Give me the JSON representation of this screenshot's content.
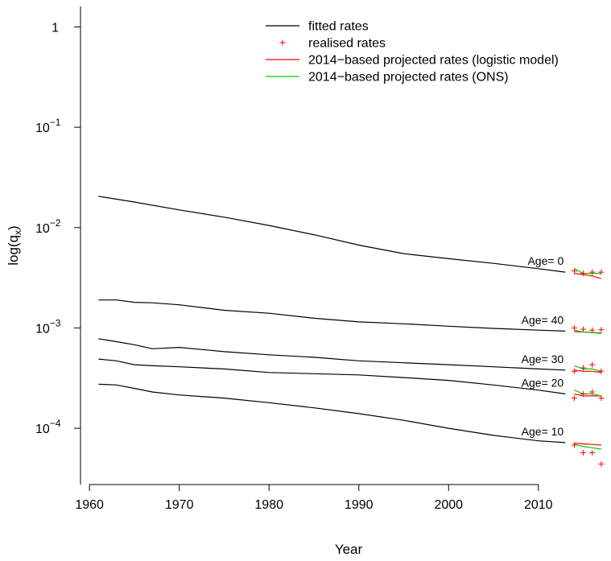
{
  "chart_data": {
    "type": "line",
    "xlabel": "Year",
    "ylabel": "log(q",
    "ylabel_sub": "x",
    "ylabel_close": ")",
    "yscale": "log",
    "xlim": [
      1959,
      2018
    ],
    "ylim": [
      2.75e-05,
      1.6
    ],
    "xticks": [
      1960,
      1970,
      1980,
      1990,
      2000,
      2010
    ],
    "yticks": [
      {
        "value": 1,
        "base": "1",
        "exp": ""
      },
      {
        "value": 0.1,
        "base": "10",
        "exp": "−1"
      },
      {
        "value": 0.01,
        "base": "10",
        "exp": "−2"
      },
      {
        "value": 0.001,
        "base": "10",
        "exp": "−3"
      },
      {
        "value": 0.0001,
        "base": "10",
        "exp": "−4"
      }
    ],
    "legend": {
      "position": "top-right",
      "entries": [
        {
          "label": "fitted rates",
          "kind": "line",
          "color": "#000000"
        },
        {
          "label": "realised rates",
          "kind": "plus",
          "color": "#ff0000"
        },
        {
          "label": "2014−based projected rates (logistic model)",
          "kind": "line",
          "color": "#ff0000"
        },
        {
          "label": "2014−based projected rates (ONS)",
          "kind": "line",
          "color": "#00cc00"
        }
      ]
    },
    "colors": {
      "fitted": "#000000",
      "realised": "#ff0000",
      "logistic": "#ff0000",
      "ons": "#00cc00"
    },
    "series": [
      {
        "age_label": "Age= 0",
        "fitted": {
          "x": [
            1961,
            1965,
            1970,
            1975,
            1980,
            1985,
            1990,
            1995,
            2000,
            2005,
            2010,
            2013
          ],
          "y": [
            0.0205,
            0.018,
            0.015,
            0.0127,
            0.0105,
            0.0085,
            0.0067,
            0.0055,
            0.0049,
            0.0044,
            0.0039,
            0.0036
          ]
        },
        "realised": {
          "x": [
            2014,
            2015,
            2016,
            2017
          ],
          "y": [
            0.0037,
            0.0035,
            0.0036,
            0.0036
          ]
        },
        "logistic": {
          "x": [
            2014,
            2015,
            2016,
            2017
          ],
          "y": [
            0.0035,
            0.0034,
            0.0033,
            0.0031
          ]
        },
        "ons": {
          "x": [
            2014,
            2015,
            2016,
            2017
          ],
          "y": [
            0.0039,
            0.0035,
            0.0035,
            0.0035
          ]
        }
      },
      {
        "age_label": "Age= 40",
        "fitted": {
          "x": [
            1961,
            1963,
            1965,
            1967,
            1970,
            1975,
            1980,
            1985,
            1990,
            1995,
            2000,
            2005,
            2010,
            2013
          ],
          "y": [
            0.0019,
            0.0019,
            0.0018,
            0.00178,
            0.0017,
            0.0015,
            0.0014,
            0.00125,
            0.00115,
            0.0011,
            0.00104,
            0.00099,
            0.00095,
            0.00093
          ]
        },
        "realised": {
          "x": [
            2014,
            2015,
            2016,
            2017
          ],
          "y": [
            0.001,
            0.00097,
            0.00095,
            0.00096
          ]
        },
        "logistic": {
          "x": [
            2014,
            2015,
            2016,
            2017
          ],
          "y": [
            0.00092,
            0.00091,
            0.0009,
            0.00089
          ]
        },
        "ons": {
          "x": [
            2014,
            2015,
            2016,
            2017
          ],
          "y": [
            0.00095,
            0.00091,
            0.0009,
            0.00088
          ]
        }
      },
      {
        "age_label": "Age= 30",
        "fitted": {
          "x": [
            1961,
            1963,
            1965,
            1967,
            1970,
            1975,
            1980,
            1985,
            1990,
            1995,
            2000,
            2005,
            2010,
            2013
          ],
          "y": [
            0.00078,
            0.00073,
            0.00068,
            0.00062,
            0.00064,
            0.00058,
            0.00054,
            0.00051,
            0.00047,
            0.00045,
            0.00043,
            0.00041,
            0.00039,
            0.00038
          ]
        },
        "realised": {
          "x": [
            2014,
            2015,
            2016,
            2017
          ],
          "y": [
            0.00037,
            0.0004,
            0.00043,
            0.00037
          ]
        },
        "logistic": {
          "x": [
            2014,
            2015,
            2016,
            2017
          ],
          "y": [
            0.00038,
            0.00037,
            0.00037,
            0.00036
          ]
        },
        "ons": {
          "x": [
            2014,
            2015,
            2016,
            2017
          ],
          "y": [
            0.00042,
            0.00039,
            0.00039,
            0.00037
          ]
        }
      },
      {
        "age_label": "Age= 20",
        "fitted": {
          "x": [
            1961,
            1963,
            1965,
            1967,
            1970,
            1975,
            1980,
            1985,
            1990,
            1995,
            2000,
            2005,
            2010,
            2013
          ],
          "y": [
            0.00049,
            0.00047,
            0.00043,
            0.00042,
            0.00041,
            0.00039,
            0.00036,
            0.00035,
            0.00034,
            0.00032,
            0.0003,
            0.00027,
            0.00024,
            0.00022
          ]
        },
        "realised": {
          "x": [
            2014,
            2015,
            2016,
            2017
          ],
          "y": [
            0.0002,
            0.00022,
            0.00023,
            0.0002
          ]
        },
        "logistic": {
          "x": [
            2014,
            2015,
            2016,
            2017
          ],
          "y": [
            0.00022,
            0.00021,
            0.00021,
            0.00021
          ]
        },
        "ons": {
          "x": [
            2014,
            2015,
            2016,
            2017
          ],
          "y": [
            0.00024,
            0.00022,
            0.00022,
            0.00021
          ]
        }
      },
      {
        "age_label": "Age= 10",
        "fitted": {
          "x": [
            1961,
            1963,
            1965,
            1967,
            1970,
            1975,
            1980,
            1985,
            1990,
            1995,
            2000,
            2005,
            2010,
            2013
          ],
          "y": [
            0.000275,
            0.00027,
            0.00025,
            0.00023,
            0.000215,
            0.0002,
            0.00018,
            0.00016,
            0.00014,
            0.00012,
            0.0001,
            8.5e-05,
            7.5e-05,
            7.2e-05
          ]
        },
        "realised": {
          "x": [
            2014,
            2015,
            2016,
            2017
          ],
          "y": [
            6.8e-05,
            5.7e-05,
            5.7e-05,
            4.4e-05
          ]
        },
        "logistic": {
          "x": [
            2014,
            2015,
            2016,
            2017
          ],
          "y": [
            7.1e-05,
            7e-05,
            6.9e-05,
            6.8e-05
          ]
        },
        "ons": {
          "x": [
            2014,
            2015,
            2016,
            2017
          ],
          "y": [
            6.9e-05,
            6.6e-05,
            6.4e-05,
            6.2e-05
          ]
        }
      }
    ]
  }
}
